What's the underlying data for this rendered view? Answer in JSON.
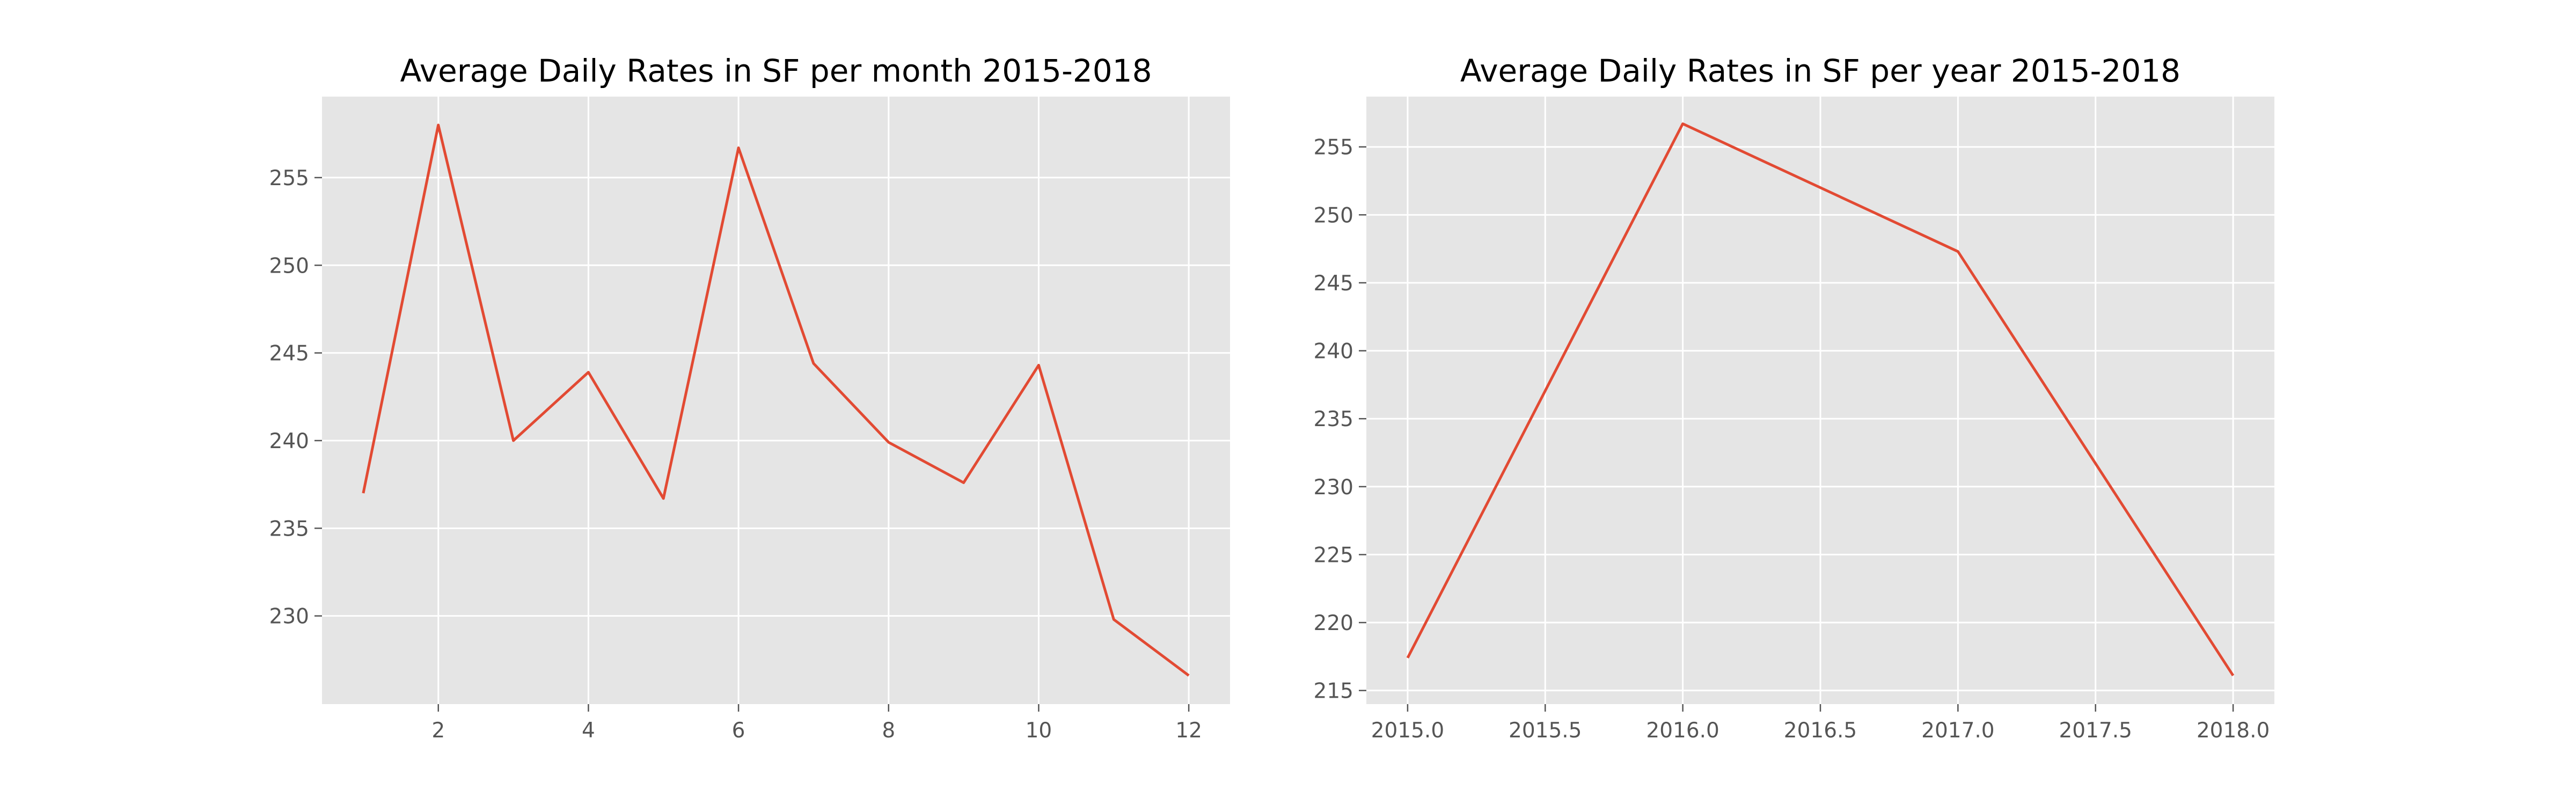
{
  "colors": {
    "series": "#e24a33",
    "plot_background": "#e5e5e5",
    "grid": "#ffffff",
    "tick_text": "#555555"
  },
  "chart_data": [
    {
      "type": "line",
      "title": "Average Daily Rates in SF per month 2015-2018",
      "xlabel": "",
      "ylabel": "",
      "grid": true,
      "xlim": [
        0.45,
        12.55
      ],
      "ylim": [
        224.97,
        259.62
      ],
      "xticks": [
        2,
        4,
        6,
        8,
        10,
        12
      ],
      "xtick_labels": [
        "2",
        "4",
        "6",
        "8",
        "10",
        "12"
      ],
      "yticks": [
        230,
        235,
        240,
        245,
        250,
        255
      ],
      "ytick_labels": [
        "230",
        "235",
        "240",
        "245",
        "250",
        "255"
      ],
      "series": [
        {
          "x": [
            1,
            2,
            3,
            4,
            5,
            6,
            7,
            8,
            9,
            10,
            11,
            12
          ],
          "values": [
            237.0,
            258.0,
            240.0,
            243.9,
            236.7,
            256.7,
            244.4,
            239.9,
            237.6,
            244.3,
            229.8,
            226.6
          ]
        }
      ]
    },
    {
      "type": "line",
      "title": "Average Daily Rates in SF per year 2015-2018",
      "xlabel": "",
      "ylabel": "",
      "grid": true,
      "xlim": [
        2014.85,
        2018.15
      ],
      "ylim": [
        214.0,
        258.7
      ],
      "xticks": [
        2015.0,
        2015.5,
        2016.0,
        2016.5,
        2017.0,
        2017.5,
        2018.0
      ],
      "xtick_labels": [
        "2015.0",
        "2015.5",
        "2016.0",
        "2016.5",
        "2017.0",
        "2017.5",
        "2018.0"
      ],
      "yticks": [
        215,
        220,
        225,
        230,
        235,
        240,
        245,
        250,
        255
      ],
      "ytick_labels": [
        "215",
        "220",
        "225",
        "230",
        "235",
        "240",
        "245",
        "250",
        "255"
      ],
      "series": [
        {
          "x": [
            2015,
            2016,
            2017,
            2018
          ],
          "values": [
            217.4,
            256.7,
            247.3,
            216.1
          ]
        }
      ]
    }
  ]
}
